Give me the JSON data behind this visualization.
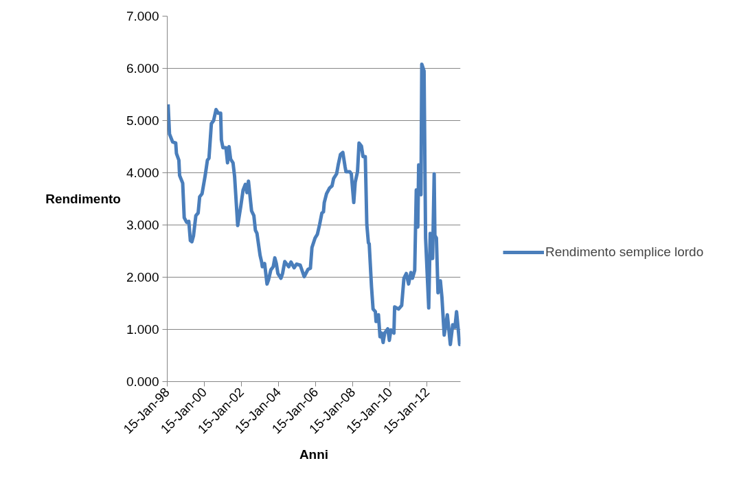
{
  "chart_data": {
    "type": "line",
    "xlabel": "Anni",
    "ylabel": "Rendimento",
    "x": [
      "1998-02-01",
      "1998-03-01",
      "1998-05-01",
      "1998-07-01",
      "1998-07-15",
      "1998-09-01",
      "1998-09-15",
      "1998-11-15",
      "1998-12-15",
      "1999-02-01",
      "1999-03-15",
      "1999-04-15",
      "1999-05-15",
      "1999-06-15",
      "1999-08-01",
      "1999-09-15",
      "1999-10-15",
      "1999-12-01",
      "2000-02-01",
      "2000-03-15",
      "2000-04-15",
      "2000-06-01",
      "2000-07-15",
      "2000-09-01",
      "2000-10-15",
      "2000-12-01",
      "2000-12-15",
      "2001-01-15",
      "2001-03-15",
      "2001-04-15",
      "2001-05-15",
      "2001-06-15",
      "2001-08-01",
      "2001-09-01",
      "2001-11-01",
      "2002-01-01",
      "2002-02-15",
      "2002-04-01",
      "2002-05-01",
      "2002-06-01",
      "2002-08-01",
      "2002-09-15",
      "2002-10-15",
      "2002-11-15",
      "2003-01-15",
      "2003-02-15",
      "2003-03-01",
      "2003-04-15",
      "2003-06-01",
      "2003-07-01",
      "2003-08-15",
      "2003-10-01",
      "2003-11-01",
      "2003-12-01",
      "2004-01-01",
      "2004-03-01",
      "2004-04-01",
      "2004-05-15",
      "2004-08-01",
      "2004-09-15",
      "2004-11-15",
      "2005-01-01",
      "2005-03-15",
      "2005-06-01",
      "2005-08-15",
      "2005-10-01",
      "2005-11-01",
      "2006-01-01",
      "2006-02-15",
      "2006-04-01",
      "2006-05-15",
      "2006-06-15",
      "2006-07-01",
      "2006-08-15",
      "2006-10-15",
      "2006-12-01",
      "2007-01-01",
      "2007-03-01",
      "2007-04-01",
      "2007-05-15",
      "2007-07-01",
      "2007-08-15",
      "2007-09-01",
      "2007-11-15",
      "2007-12-15",
      "2008-02-01",
      "2008-03-01",
      "2008-04-15",
      "2008-05-15",
      "2008-07-01",
      "2008-08-01",
      "2008-09-15",
      "2008-10-15",
      "2008-11-15",
      "2008-12-01",
      "2009-01-15",
      "2009-02-15",
      "2009-04-01",
      "2009-04-15",
      "2009-06-01",
      "2009-07-01",
      "2009-08-01",
      "2009-09-01",
      "2009-10-01",
      "2009-12-01",
      "2010-01-01",
      "2010-02-01",
      "2010-04-01",
      "2010-04-15",
      "2010-07-01",
      "2010-09-01",
      "2010-10-15",
      "2010-12-01",
      "2011-01-15",
      "2011-03-01",
      "2011-04-01",
      "2011-05-15",
      "2011-06-15",
      "2011-07-15",
      "2011-08-01",
      "2011-09-15",
      "2011-10-01",
      "2011-11-15",
      "2011-12-15",
      "2012-02-15",
      "2012-03-15",
      "2012-05-01",
      "2012-06-01",
      "2012-06-15",
      "2012-07-15",
      "2012-08-15",
      "2012-10-01",
      "2012-11-01",
      "2012-12-15",
      "2013-02-15",
      "2013-04-15",
      "2013-06-01",
      "2013-07-15",
      "2013-08-15",
      "2013-10-15",
      "2013-11-01"
    ],
    "series": [
      {
        "name": "Rendimento semplice lordo",
        "color": "#4a7ebb",
        "values": [
          5.31,
          4.74,
          4.59,
          4.57,
          4.37,
          4.24,
          3.95,
          3.8,
          3.14,
          3.05,
          3.07,
          2.7,
          2.68,
          2.79,
          3.18,
          3.23,
          3.54,
          3.6,
          3.95,
          4.24,
          4.28,
          4.94,
          5.0,
          5.21,
          5.14,
          5.14,
          4.63,
          4.48,
          4.48,
          4.19,
          4.5,
          4.26,
          4.19,
          3.93,
          2.99,
          3.36,
          3.67,
          3.78,
          3.62,
          3.84,
          3.27,
          3.18,
          2.9,
          2.84,
          2.42,
          2.29,
          2.2,
          2.26,
          1.87,
          1.95,
          2.14,
          2.2,
          2.37,
          2.26,
          2.07,
          1.98,
          2.07,
          2.3,
          2.2,
          2.29,
          2.18,
          2.25,
          2.23,
          2.01,
          2.15,
          2.17,
          2.57,
          2.75,
          2.82,
          3.01,
          3.23,
          3.25,
          3.43,
          3.6,
          3.71,
          3.75,
          3.89,
          3.98,
          4.15,
          4.35,
          4.39,
          4.11,
          4.02,
          4.02,
          3.98,
          3.43,
          3.82,
          4.02,
          4.57,
          4.51,
          4.31,
          4.31,
          3.01,
          2.66,
          2.64,
          1.82,
          1.39,
          1.34,
          1.15,
          1.28,
          0.86,
          0.93,
          0.75,
          0.93,
          1.01,
          0.79,
          0.99,
          0.93,
          1.43,
          1.39,
          1.46,
          1.98,
          2.07,
          1.87,
          2.09,
          1.98,
          2.13,
          3.67,
          2.96,
          4.15,
          3.58,
          6.08,
          5.95,
          2.75,
          1.41,
          2.84,
          2.36,
          3.98,
          2.8,
          2.75,
          1.7,
          1.93,
          1.61,
          0.89,
          1.28,
          0.71,
          1.09,
          1.04,
          1.34,
          0.71,
          0.71
        ]
      }
    ],
    "xlim": [
      "1998-01-15",
      "2013-11-01"
    ],
    "xticks": [
      {
        "value": "1998-01-15",
        "label": "15-Jan-98"
      },
      {
        "value": "2000-01-15",
        "label": "15-Jan-00"
      },
      {
        "value": "2002-01-15",
        "label": "15-Jan-02"
      },
      {
        "value": "2004-01-15",
        "label": "15-Jan-04"
      },
      {
        "value": "2006-01-15",
        "label": "15-Jan-06"
      },
      {
        "value": "2008-01-15",
        "label": "15-Jan-08"
      },
      {
        "value": "2010-01-15",
        "label": "15-Jan-10"
      },
      {
        "value": "2012-01-15",
        "label": "15-Jan-12"
      }
    ],
    "ylim": [
      0,
      7
    ],
    "yticks": [
      {
        "value": 0,
        "label": "0.000"
      },
      {
        "value": 1,
        "label": "1.000"
      },
      {
        "value": 2,
        "label": "2.000"
      },
      {
        "value": 3,
        "label": "3.000"
      },
      {
        "value": 4,
        "label": "4.000"
      },
      {
        "value": 5,
        "label": "5.000"
      },
      {
        "value": 6,
        "label": "6.000"
      },
      {
        "value": 7,
        "label": "7.000"
      }
    ],
    "grid": "y",
    "legend": "right",
    "marker": "none",
    "line_style": "solid"
  }
}
